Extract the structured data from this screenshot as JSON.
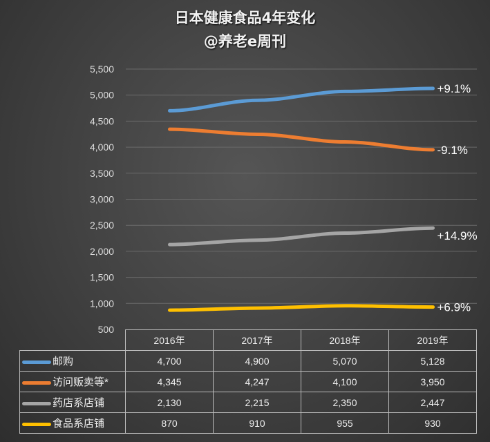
{
  "chart_data": {
    "type": "line",
    "title": "日本健康食品4年变化",
    "subtitle": "@养老e周刊",
    "categories": [
      "2016年",
      "2017年",
      "2018年",
      "2019年"
    ],
    "ylim": [
      500,
      5500
    ],
    "yticks": [
      "500",
      "1,000",
      "1,500",
      "2,000",
      "2,500",
      "3,000",
      "3,500",
      "4,000",
      "4,500",
      "5,000",
      "5,500"
    ],
    "grid": true,
    "legend": "data-table",
    "series": [
      {
        "name": "邮购",
        "color": "#5b9bd5",
        "values": [
          4700,
          4900,
          5070,
          5128
        ],
        "labels": [
          "4,700",
          "4,900",
          "5,070",
          "5,128"
        ],
        "change": "+9.1%"
      },
      {
        "name": "访问贩卖等*",
        "color": "#ed7d31",
        "values": [
          4345,
          4247,
          4100,
          3950
        ],
        "labels": [
          "4,345",
          "4,247",
          "4,100",
          "3,950"
        ],
        "change": "-9.1%"
      },
      {
        "name": "药店系店铺",
        "color": "#a5a5a5",
        "values": [
          2130,
          2215,
          2350,
          2447
        ],
        "labels": [
          "2,130",
          "2,215",
          "2,350",
          "2,447"
        ],
        "change": "+14.9%"
      },
      {
        "name": "食品系店铺",
        "color": "#ffc000",
        "values": [
          870,
          910,
          955,
          930
        ],
        "labels": [
          "870",
          "910",
          "955",
          "930"
        ],
        "change": "+6.9%"
      }
    ]
  }
}
